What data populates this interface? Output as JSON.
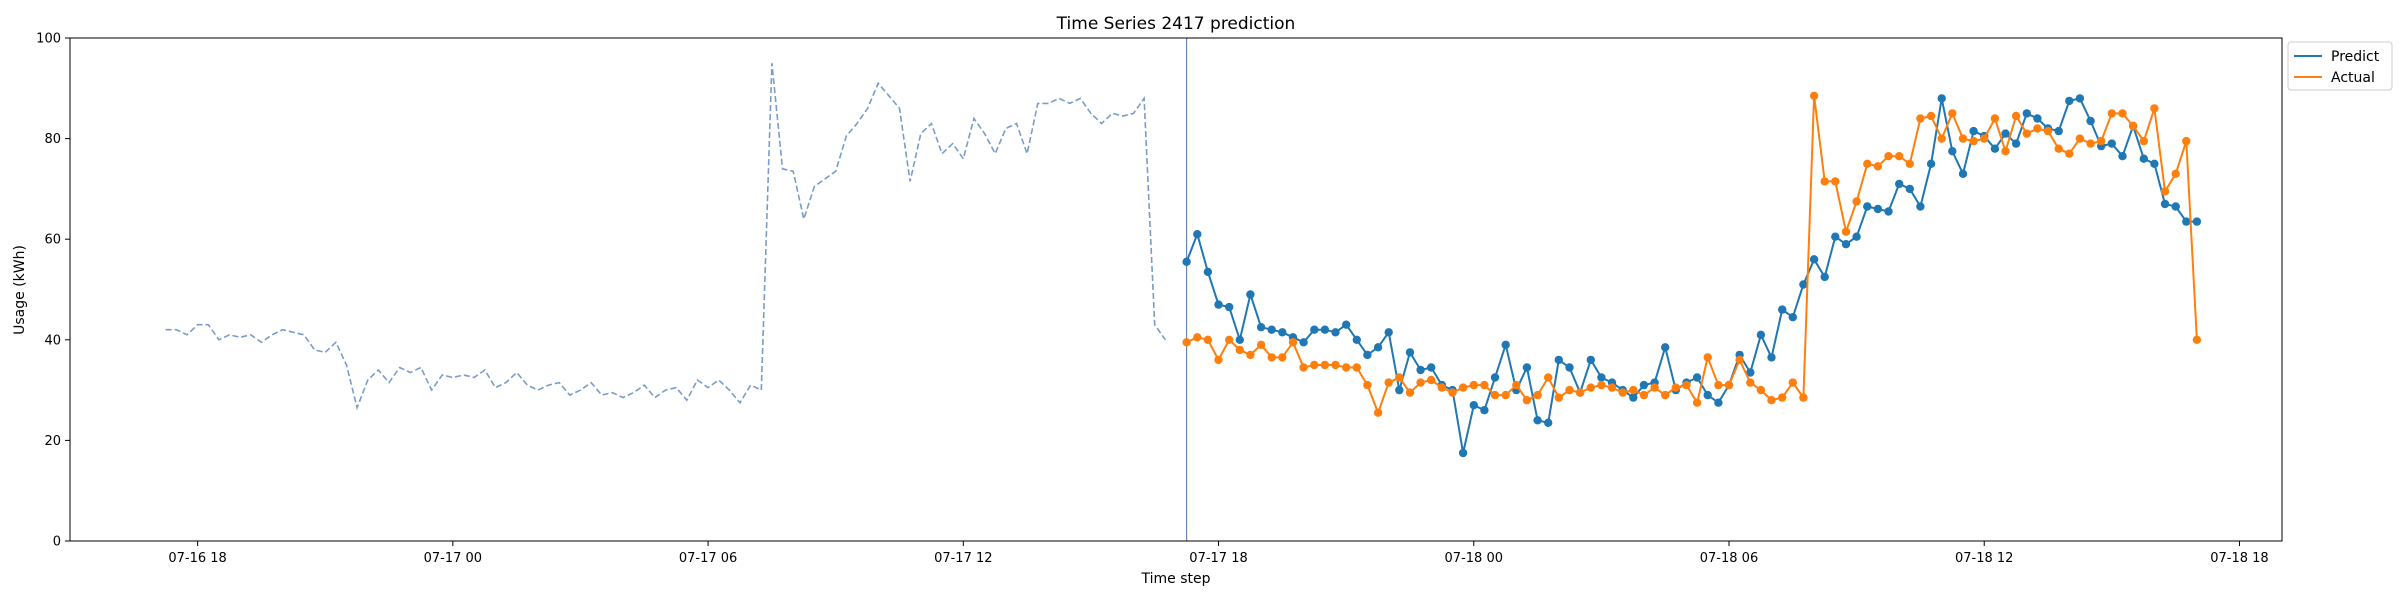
{
  "chart_data": {
    "type": "line",
    "title": "Time Series 2417 prediction",
    "xlabel": "Time step",
    "ylabel": "Usage (kWh)",
    "ylim": [
      0,
      100
    ],
    "xlim": [
      "2025-07-16T15:00",
      "2025-07-18T19:00"
    ],
    "yticks": [
      0,
      20,
      40,
      60,
      80,
      100
    ],
    "xticks": [
      {
        "t": "2025-07-16T18:00",
        "label": "07-16 18"
      },
      {
        "t": "2025-07-17T00:00",
        "label": "07-17 00"
      },
      {
        "t": "2025-07-17T06:00",
        "label": "07-17 06"
      },
      {
        "t": "2025-07-17T12:00",
        "label": "07-17 12"
      },
      {
        "t": "2025-07-17T18:00",
        "label": "07-17 18"
      },
      {
        "t": "2025-07-18T00:00",
        "label": "07-18 00"
      },
      {
        "t": "2025-07-18T06:00",
        "label": "07-18 06"
      },
      {
        "t": "2025-07-18T12:00",
        "label": "07-18 12"
      },
      {
        "t": "2025-07-18T18:00",
        "label": "07-18 18"
      }
    ],
    "grid": false,
    "legend_position": "top-right",
    "interval_minutes": 15,
    "forecast_start": "2025-07-17T17:15",
    "history": {
      "start": "2025-07-16T17:15",
      "color": "#7a9cc6",
      "style": "dashed",
      "values": [
        42,
        42,
        41,
        43,
        43,
        40,
        41,
        40.5,
        41,
        39.5,
        41,
        42,
        41.5,
        41,
        38,
        37.5,
        39.5,
        35,
        26.5,
        32,
        34,
        31.5,
        34.5,
        33.5,
        34.5,
        30,
        33,
        32.5,
        33,
        32.5,
        34,
        30.5,
        31.5,
        33.5,
        31,
        30,
        31,
        31.5,
        29,
        30,
        31.5,
        29,
        29.5,
        28.5,
        29.5,
        31,
        28.5,
        30,
        30.5,
        28,
        32,
        30.5,
        32,
        30,
        27.5,
        31,
        30,
        95,
        74,
        73.5,
        64,
        70.5,
        72,
        73.5,
        80.5,
        83,
        86,
        91,
        88.5,
        86,
        71.5,
        81,
        83,
        77,
        79,
        76,
        84,
        81,
        77,
        82,
        83,
        77,
        87,
        87,
        88,
        87,
        88,
        85,
        83,
        85,
        84.5,
        85,
        88,
        43,
        40
      ]
    },
    "series": [
      {
        "name": "Predict",
        "color": "#1f77b4",
        "start": "2025-07-17T17:15",
        "values": [
          55.5,
          61,
          53.5,
          47,
          46.5,
          40,
          49,
          42.5,
          42,
          41.5,
          40.5,
          39.5,
          42,
          42,
          41.5,
          43,
          40,
          37,
          38.5,
          41.5,
          30,
          37.5,
          34,
          34.5,
          31,
          30,
          17.5,
          27,
          26,
          32.5,
          39,
          30,
          34.5,
          24,
          23.5,
          36,
          34.5,
          29.5,
          36,
          32.5,
          31.5,
          30,
          28.5,
          31,
          31.5,
          38.5,
          30,
          31.5,
          32.5,
          29,
          27.5,
          31,
          37,
          33.5,
          41,
          36.5,
          46,
          44.5,
          51,
          56,
          52.5,
          60.5,
          59,
          60.5,
          66.5,
          66,
          65.5,
          71,
          70,
          66.5,
          75,
          88,
          77.5,
          73,
          81.5,
          80.5,
          78,
          81,
          79,
          85,
          84,
          82,
          81.5,
          87.5,
          88,
          83.5,
          78.5,
          79,
          76.5,
          82.5,
          76,
          75,
          67,
          66.5,
          63.5,
          63.5
        ]
      },
      {
        "name": "Actual",
        "color": "#ff7f0e",
        "start": "2025-07-17T17:15",
        "values": [
          39.5,
          40.5,
          40,
          36,
          40,
          38,
          37,
          39,
          36.5,
          36.5,
          39.5,
          34.5,
          35,
          35,
          35,
          34.5,
          34.5,
          31,
          25.5,
          31.5,
          32.5,
          29.5,
          31.5,
          32,
          30.5,
          29.5,
          30.5,
          31,
          31,
          29,
          29,
          31,
          28,
          29,
          32.5,
          28.5,
          30,
          29.5,
          30.5,
          31,
          30.5,
          29.5,
          30,
          29,
          30.5,
          29,
          30.5,
          31,
          27.5,
          36.5,
          31,
          31,
          36,
          31.5,
          30,
          28,
          28.5,
          31.5,
          28.5,
          88.5,
          71.5,
          71.5,
          61.5,
          67.5,
          75,
          74.5,
          76.5,
          76.5,
          75,
          84,
          84.5,
          80,
          85,
          80,
          79.5,
          80,
          84,
          77.5,
          84.5,
          81,
          82,
          81.5,
          78,
          77,
          80,
          79,
          79.5,
          85,
          85,
          82.5,
          79.5,
          86,
          69.5,
          73,
          79.5,
          40
        ]
      }
    ]
  }
}
